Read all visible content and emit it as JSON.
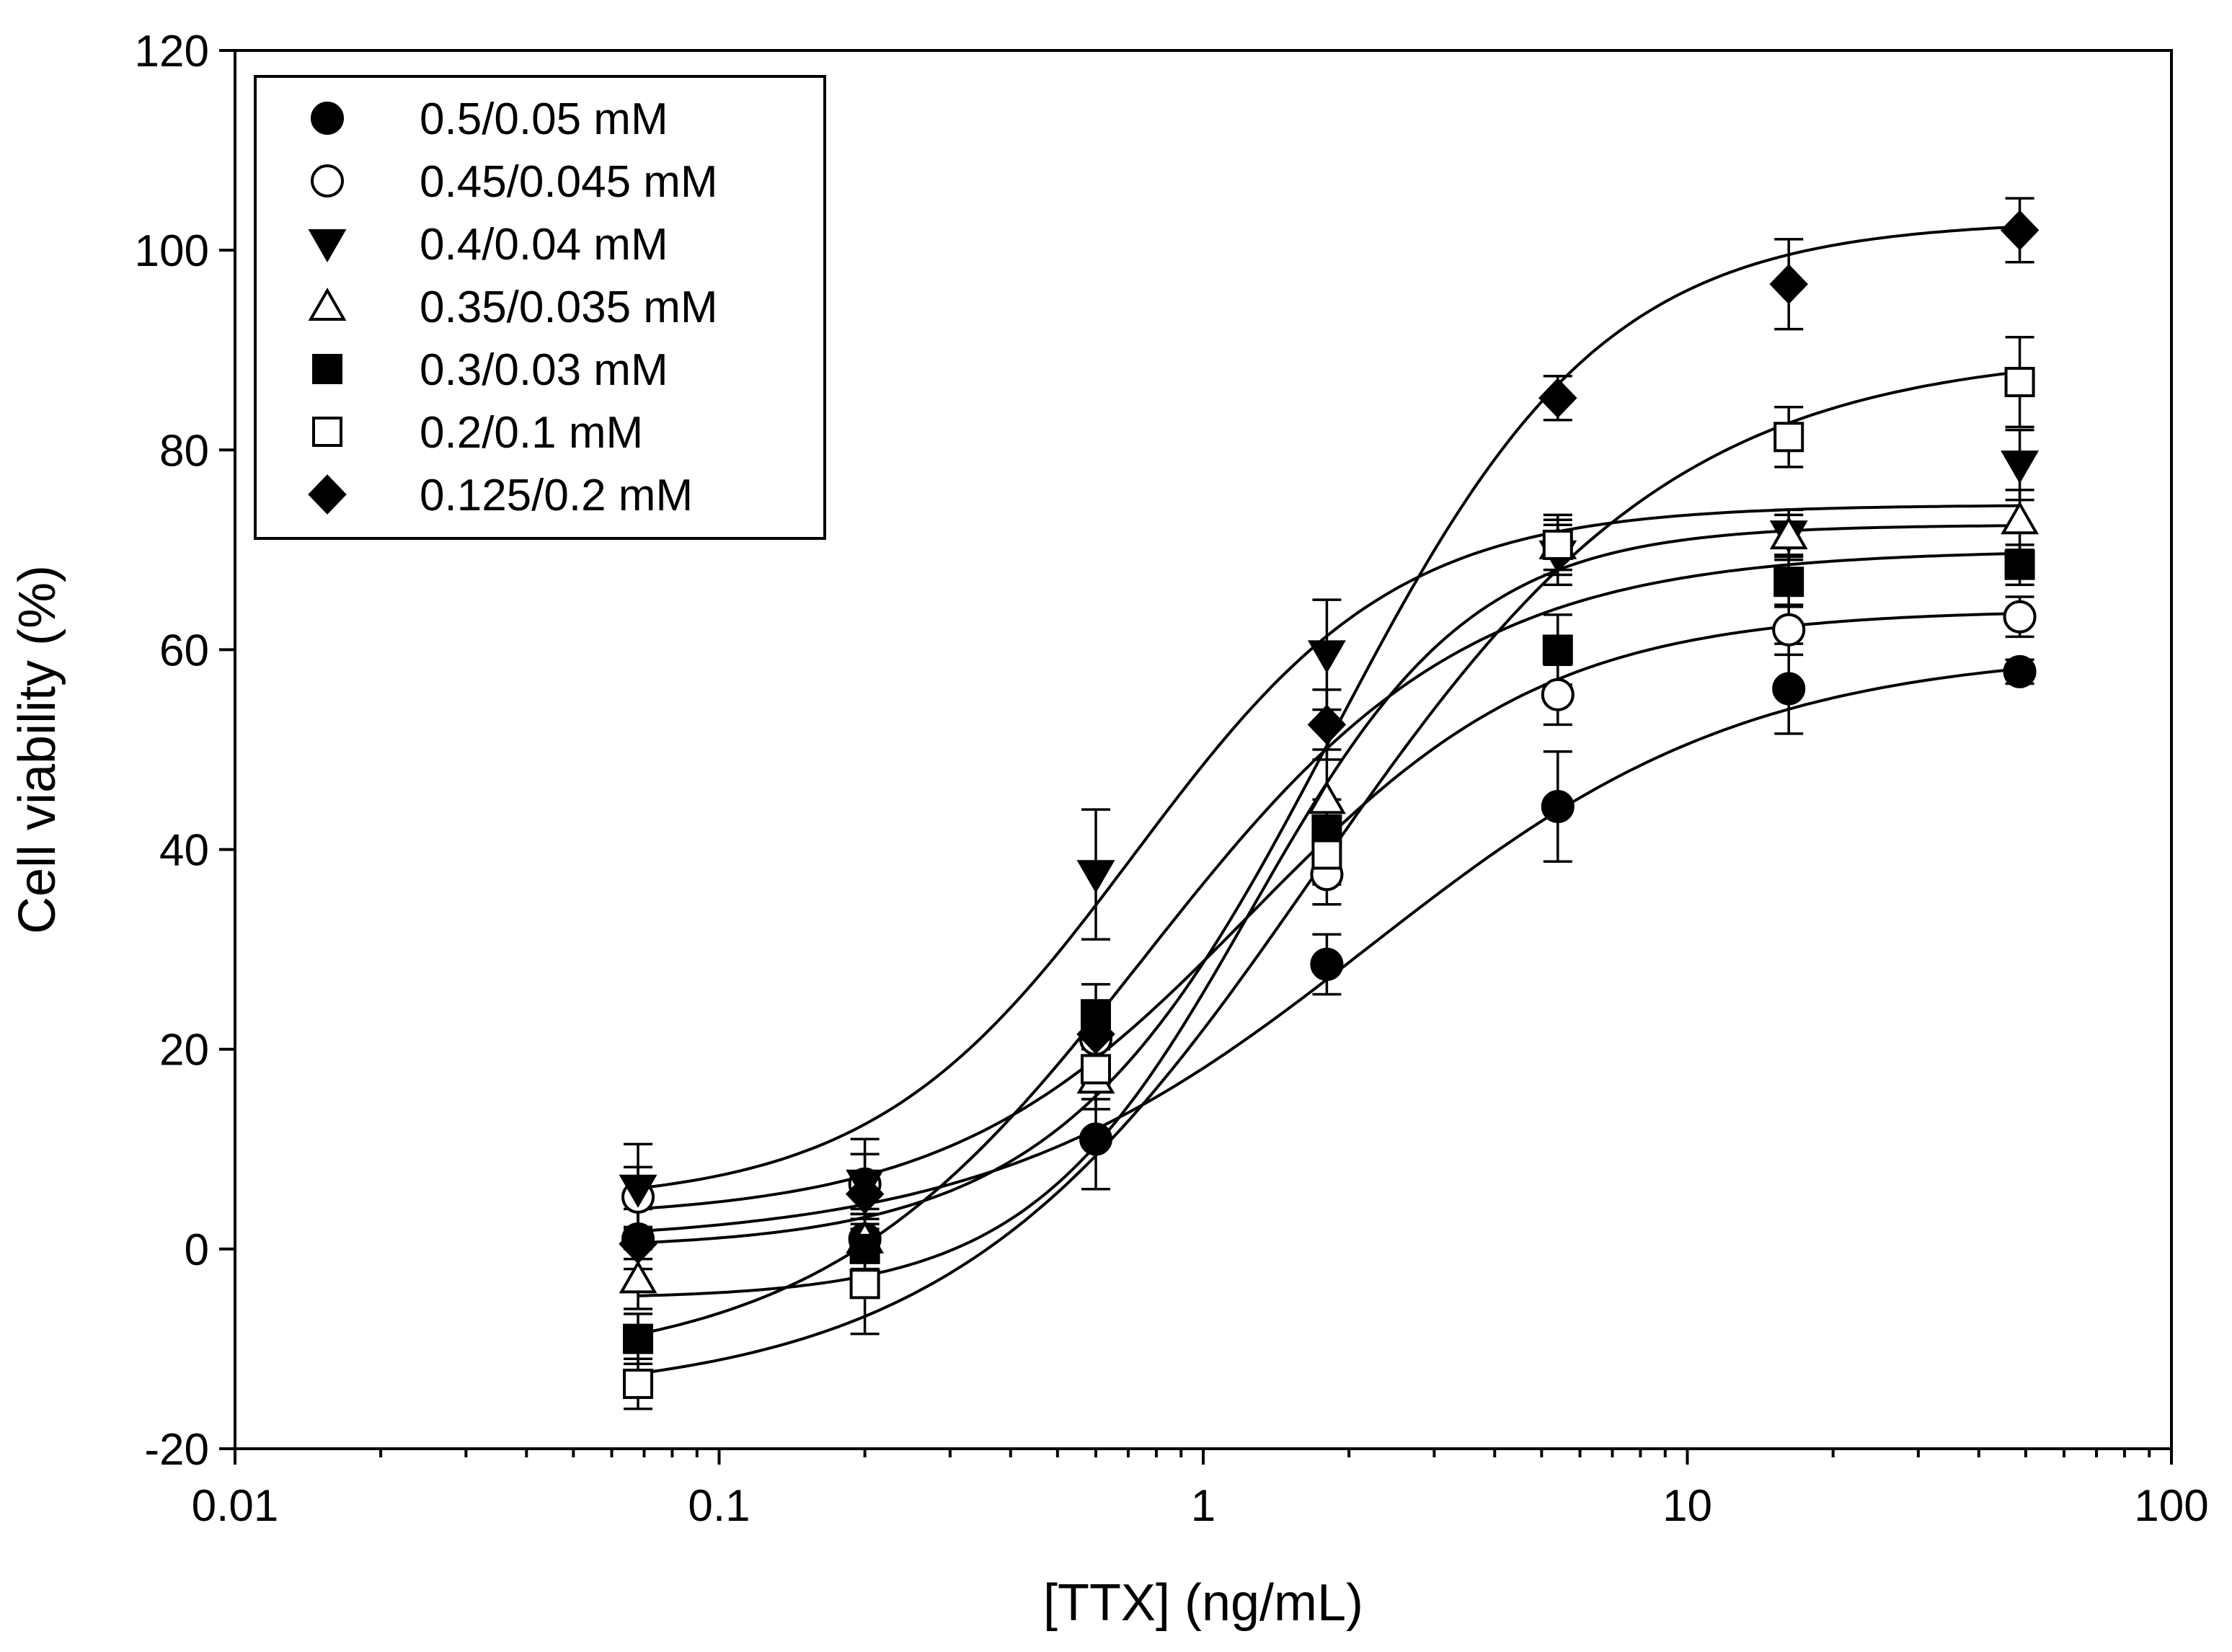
{
  "chart_data": {
    "type": "scatter",
    "title": "",
    "xlabel": "[TTX] (ng/mL)",
    "ylabel": "Cell viability (%)",
    "xscale": "log",
    "xlim": [
      0.01,
      100
    ],
    "ylim": [
      -20,
      120
    ],
    "x_ticks": [
      0.01,
      0.1,
      1,
      10,
      100
    ],
    "x_tick_labels": [
      "0.01",
      "0.1",
      "1",
      "10",
      "100"
    ],
    "y_ticks": [
      -20,
      0,
      20,
      40,
      60,
      80,
      100,
      120
    ],
    "y_tick_labels": [
      "-20",
      "0",
      "20",
      "40",
      "60",
      "80",
      "100",
      "120"
    ],
    "legend_position": "top-left",
    "x": [
      0.068,
      0.2,
      0.6,
      1.8,
      5.4,
      16.2,
      48.6
    ],
    "series": [
      {
        "name": "0.5/0.05 mM",
        "marker": "circle-filled",
        "values": [
          1,
          1,
          11,
          28.5,
          44.3,
          56.1,
          57.8
        ],
        "errors": [
          3,
          2,
          5,
          3,
          5.5,
          4.5,
          1.2
        ],
        "fit": {
          "bottom": 0.5,
          "top": 60,
          "ec50": 2.2,
          "hill": 1.1
        }
      },
      {
        "name": "0.45/0.045 mM",
        "marker": "circle-open",
        "values": [
          5.2,
          6.5,
          21,
          37.5,
          55.5,
          62,
          63.3
        ],
        "errors": [
          3,
          3,
          3,
          3,
          3,
          2.5,
          2
        ],
        "fit": {
          "bottom": 3,
          "top": 64,
          "ec50": 1.25,
          "hill": 1.4
        }
      },
      {
        "name": "0.4/0.04 mM",
        "marker": "triangle-down-filled",
        "values": [
          6,
          6.5,
          37.5,
          59.5,
          69.5,
          71.5,
          78.5
        ],
        "errors": [
          4.5,
          4.5,
          6.5,
          5.5,
          3,
          2.5,
          3.5
        ],
        "fit": {
          "bottom": 4.5,
          "top": 74.5,
          "ec50": 0.72,
          "hill": 1.6
        }
      },
      {
        "name": "0.35/0.035 mM",
        "marker": "triangle-up-open",
        "values": [
          -3,
          1,
          17,
          45,
          70.5,
          71.5,
          73
        ],
        "errors": [
          3,
          3,
          3,
          5,
          2.5,
          2,
          3
        ],
        "fit": {
          "bottom": -5,
          "top": 72.5,
          "ec50": 1.25,
          "hill": 1.9
        }
      },
      {
        "name": "0.3/0.03 mM",
        "marker": "square-filled",
        "values": [
          -9,
          0,
          23.5,
          42,
          60,
          66.8,
          68.5
        ],
        "errors": [
          2.5,
          2.5,
          3,
          3,
          3.5,
          2.5,
          2
        ],
        "fit": {
          "bottom": -12,
          "top": 70,
          "ec50": 0.75,
          "hill": 1.3
        }
      },
      {
        "name": "0.2/0.1 mM",
        "marker": "square-open",
        "values": [
          -13.5,
          -3.5,
          18,
          39.5,
          70.5,
          81.3,
          86.8
        ],
        "errors": [
          2.5,
          5,
          3,
          3,
          3,
          3,
          4.5
        ],
        "fit": {
          "bottom": -15,
          "top": 90,
          "ec50": 1.7,
          "hill": 1.15
        }
      },
      {
        "name": "0.125/0.2 mM",
        "marker": "diamond-filled",
        "values": [
          0.5,
          5.5,
          21.5,
          52.5,
          85.2,
          96.6,
          102
        ],
        "errors": [
          1.5,
          2,
          3,
          3.5,
          2.2,
          4.5,
          3.2
        ],
        "fit": {
          "bottom": 0,
          "top": 103,
          "ec50": 1.85,
          "hill": 1.55
        }
      }
    ]
  }
}
